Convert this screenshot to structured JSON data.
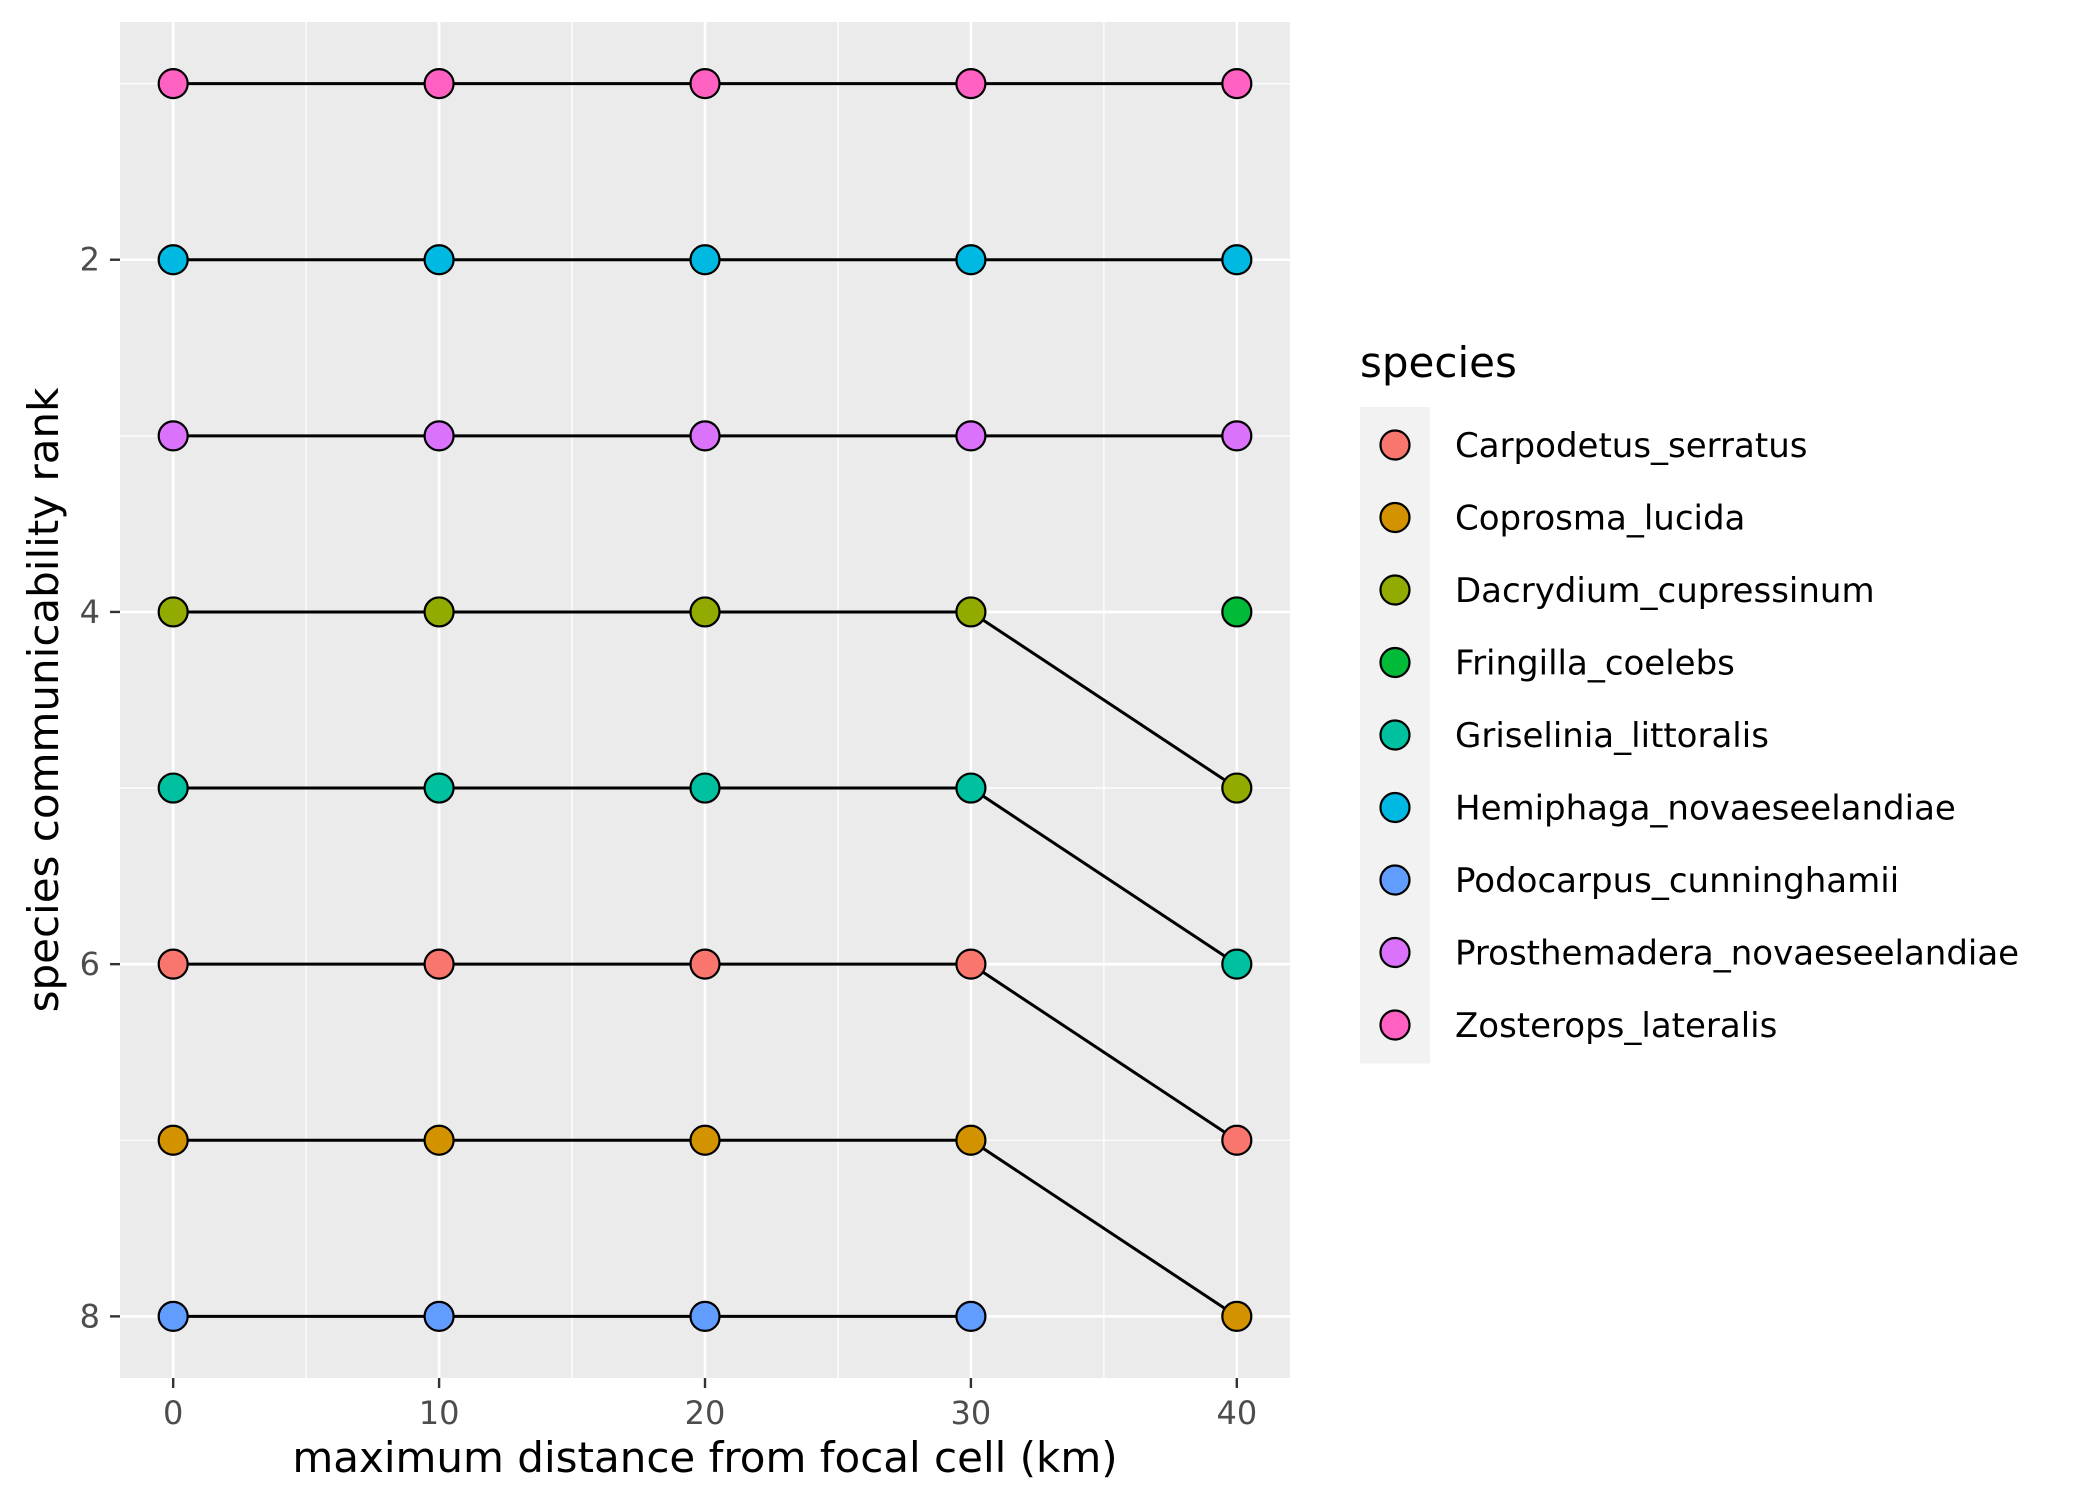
{
  "chart_data": {
    "type": "line",
    "xlabel": "maximum distance from focal cell (km)",
    "ylabel": "species communicability rank",
    "x_ticks": [
      0,
      10,
      20,
      30,
      40
    ],
    "y_ticks": [
      2,
      4,
      6,
      8
    ],
    "xlim": [
      -2,
      42
    ],
    "ylim": [
      0.65,
      8.35
    ],
    "y_reversed": true,
    "grid": true,
    "legend_title": "species",
    "legend_position": "right",
    "series": [
      {
        "name": "Carpodetus_serratus",
        "color": "#F8766D",
        "points": [
          {
            "x": 0,
            "y": 6
          },
          {
            "x": 10,
            "y": 6
          },
          {
            "x": 20,
            "y": 6
          },
          {
            "x": 30,
            "y": 6
          },
          {
            "x": 40,
            "y": 7
          }
        ]
      },
      {
        "name": "Coprosma_lucida",
        "color": "#D39200",
        "points": [
          {
            "x": 0,
            "y": 7
          },
          {
            "x": 10,
            "y": 7
          },
          {
            "x": 20,
            "y": 7
          },
          {
            "x": 30,
            "y": 7
          },
          {
            "x": 40,
            "y": 8
          }
        ]
      },
      {
        "name": "Dacrydium_cupressinum",
        "color": "#93AA00",
        "points": [
          {
            "x": 0,
            "y": 4
          },
          {
            "x": 10,
            "y": 4
          },
          {
            "x": 20,
            "y": 4
          },
          {
            "x": 30,
            "y": 4
          },
          {
            "x": 40,
            "y": 5
          }
        ]
      },
      {
        "name": "Fringilla_coelebs",
        "color": "#00BA38",
        "points": [
          {
            "x": 40,
            "y": 4
          }
        ]
      },
      {
        "name": "Griselinia_littoralis",
        "color": "#00C19F",
        "points": [
          {
            "x": 0,
            "y": 5
          },
          {
            "x": 10,
            "y": 5
          },
          {
            "x": 20,
            "y": 5
          },
          {
            "x": 30,
            "y": 5
          },
          {
            "x": 40,
            "y": 6
          }
        ]
      },
      {
        "name": "Hemiphaga_novaeseelandiae",
        "color": "#00B9E3",
        "points": [
          {
            "x": 0,
            "y": 2
          },
          {
            "x": 10,
            "y": 2
          },
          {
            "x": 20,
            "y": 2
          },
          {
            "x": 30,
            "y": 2
          },
          {
            "x": 40,
            "y": 2
          }
        ]
      },
      {
        "name": "Podocarpus_cunninghamii",
        "color": "#619CFF",
        "points": [
          {
            "x": 0,
            "y": 8
          },
          {
            "x": 10,
            "y": 8
          },
          {
            "x": 20,
            "y": 8
          },
          {
            "x": 30,
            "y": 8
          }
        ]
      },
      {
        "name": "Prosthemadera_novaeseelandiae",
        "color": "#DB72FB",
        "points": [
          {
            "x": 0,
            "y": 3
          },
          {
            "x": 10,
            "y": 3
          },
          {
            "x": 20,
            "y": 3
          },
          {
            "x": 30,
            "y": 3
          },
          {
            "x": 40,
            "y": 3
          }
        ]
      },
      {
        "name": "Zosterops_lateralis",
        "color": "#FF61C3",
        "points": [
          {
            "x": 0,
            "y": 1
          },
          {
            "x": 10,
            "y": 1
          },
          {
            "x": 20,
            "y": 1
          },
          {
            "x": 30,
            "y": 1
          },
          {
            "x": 40,
            "y": 1
          }
        ]
      }
    ],
    "panel_background": "#EBEBEB",
    "grid_color": "#FFFFFF",
    "line_color": "#000000"
  }
}
